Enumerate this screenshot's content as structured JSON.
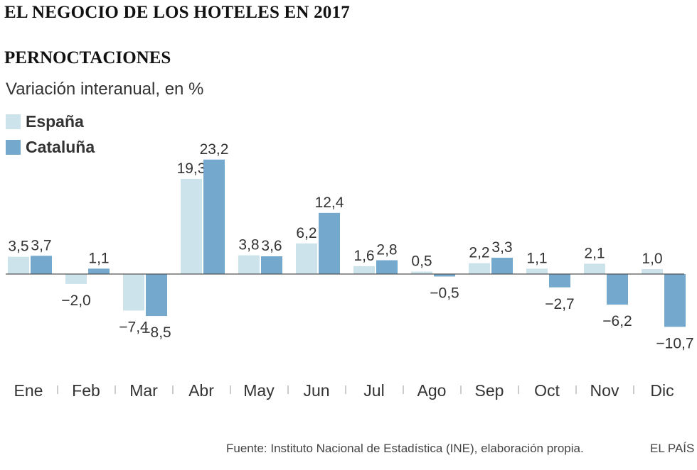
{
  "chart_data": {
    "type": "bar",
    "title": "EL NEGOCIO DE LOS HOTELES EN 2017",
    "subtitle": "PERNOCTACIONES",
    "ylabel": "Variación interanual, en %",
    "categories": [
      "Ene",
      "Feb",
      "Mar",
      "Abr",
      "May",
      "Jun",
      "Jul",
      "Ago",
      "Sep",
      "Oct",
      "Nov",
      "Dic"
    ],
    "series": [
      {
        "name": "España",
        "color": "#cde3ec",
        "values": [
          3.5,
          -2.0,
          -7.4,
          19.3,
          3.8,
          6.2,
          1.6,
          0.5,
          2.2,
          1.1,
          2.1,
          1.0
        ],
        "labels": [
          "3,5",
          "−2,0",
          "−7,4",
          "19,3",
          "3,8",
          "6,2",
          "1,6",
          "0,5",
          "2,2",
          "1,1",
          "2,1",
          "1,0"
        ]
      },
      {
        "name": "Cataluña",
        "color": "#74a9cd",
        "values": [
          3.7,
          1.1,
          -8.5,
          23.2,
          3.6,
          12.4,
          2.8,
          -0.5,
          3.3,
          -2.7,
          -6.2,
          -10.7
        ],
        "labels": [
          "3,7",
          "1,1",
          "−8,5",
          "23,2",
          "3,6",
          "12,4",
          "2,8",
          "−0,5",
          "3,3",
          "−2,7",
          "−6,2",
          "−10,7"
        ]
      }
    ],
    "ylim": [
      -12,
      26
    ],
    "grid": false,
    "legend": "top-left"
  },
  "source": "Fuente: Instituto Nacional de Estadística (INE), elaboración propia.",
  "brand": "EL PAÍS",
  "colors": {
    "text": "#333333",
    "axis": "#555555"
  }
}
